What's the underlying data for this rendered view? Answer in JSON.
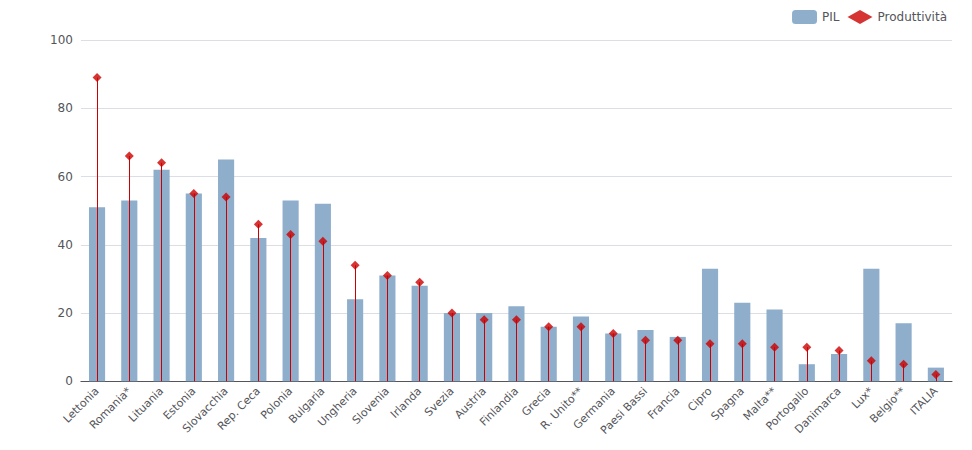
{
  "chart_data": {
    "type": "bar",
    "categories": [
      "Lettonia",
      "Romania*",
      "Lituania",
      "Estonia",
      "Slovacchia",
      "Rep. Ceca",
      "Polonia",
      "Bulgaria",
      "Ungheria",
      "Slovenia",
      "Irlanda",
      "Svezia",
      "Austria",
      "Finlandia",
      "Grecia",
      "R. Unito**",
      "Germania",
      "Paesi Bassi",
      "Francia",
      "Cipro",
      "Spagna",
      "Malta**",
      "Portogallo",
      "Danimarca",
      "Lux*",
      "Belgio**",
      "ITALIA"
    ],
    "series": [
      {
        "name": "PIL",
        "type": "bar",
        "color": "#8EAECB",
        "values": [
          51,
          53,
          62,
          55,
          65,
          42,
          53,
          52,
          24,
          31,
          28,
          20,
          20,
          22,
          16,
          19,
          14,
          15,
          13,
          33,
          23,
          21,
          5,
          8,
          33,
          17,
          4
        ]
      },
      {
        "name": "Produttività",
        "type": "lollipop",
        "marker": "diamond",
        "color": "#CC0000",
        "values": [
          89,
          66,
          64,
          55,
          54,
          46,
          43,
          41,
          34,
          31,
          29,
          20,
          18,
          18,
          16,
          16,
          14,
          12,
          12,
          11,
          11,
          10,
          10,
          9,
          6,
          5,
          2
        ]
      }
    ],
    "ylim": [
      0,
      100
    ],
    "yticks": [
      0,
      20,
      40,
      60,
      80,
      100
    ],
    "grid": true,
    "legend": "upper right"
  }
}
